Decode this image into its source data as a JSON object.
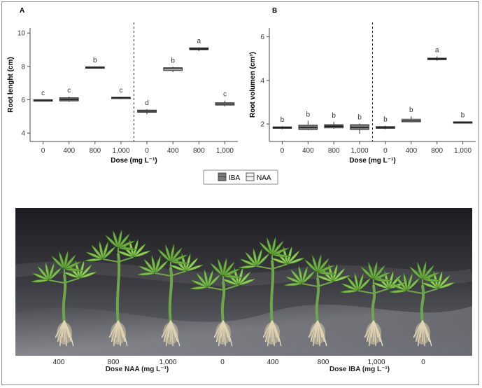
{
  "chart_data": [
    {
      "type": "box",
      "panel_label": "A",
      "ylabel": "Root lenght (cm)",
      "xlabel": "Dose (mg L⁻¹)",
      "ylim": [
        3.5,
        10.3
      ],
      "yticks": [
        4,
        6,
        8,
        10
      ],
      "categories": [
        "0",
        "400",
        "800",
        "1,000",
        "0",
        "400",
        "800",
        "1,000"
      ],
      "groups": [
        "IBA",
        "IBA",
        "IBA",
        "IBA",
        "NAA",
        "NAA",
        "NAA",
        "NAA"
      ],
      "boxes": [
        {
          "min": 5.93,
          "q1": 5.96,
          "median": 5.98,
          "q3": 6.0,
          "max": 6.02,
          "letter": "c"
        },
        {
          "min": 5.88,
          "q1": 5.93,
          "median": 6.03,
          "q3": 6.12,
          "max": 6.18,
          "letter": "c"
        },
        {
          "min": 7.88,
          "q1": 7.93,
          "median": 7.95,
          "q3": 7.97,
          "max": 8.0,
          "letter": "b"
        },
        {
          "min": 6.08,
          "q1": 6.11,
          "median": 6.13,
          "q3": 6.15,
          "max": 6.18,
          "letter": "c"
        },
        {
          "min": 5.12,
          "q1": 5.25,
          "median": 5.32,
          "q3": 5.38,
          "max": 5.43,
          "letter": "d"
        },
        {
          "min": 7.65,
          "q1": 7.75,
          "median": 7.85,
          "q3": 7.92,
          "max": 7.97,
          "letter": "b"
        },
        {
          "min": 8.92,
          "q1": 9.0,
          "median": 9.05,
          "q3": 9.12,
          "max": 9.15,
          "letter": "a"
        },
        {
          "min": 5.6,
          "q1": 5.68,
          "median": 5.75,
          "q3": 5.82,
          "max": 5.95,
          "letter": "c"
        }
      ]
    },
    {
      "type": "box",
      "panel_label": "B",
      "ylabel": "Root volumen (cm³)",
      "xlabel": "Dose (mg L⁻¹)",
      "ylim": [
        1.2,
        6.4
      ],
      "yticks": [
        2,
        4,
        6
      ],
      "categories": [
        "0",
        "400",
        "800",
        "1,000",
        "0",
        "400",
        "800",
        "1,000"
      ],
      "groups": [
        "IBA",
        "IBA",
        "IBA",
        "IBA",
        "NAA",
        "NAA",
        "NAA",
        "NAA"
      ],
      "boxes": [
        {
          "min": 1.76,
          "q1": 1.8,
          "median": 1.83,
          "q3": 1.87,
          "max": 1.9,
          "letter": "b"
        },
        {
          "min": 1.72,
          "q1": 1.75,
          "median": 1.85,
          "q3": 1.95,
          "max": 2.15,
          "letter": "b"
        },
        {
          "min": 1.78,
          "q1": 1.82,
          "median": 1.9,
          "q3": 1.97,
          "max": 2.1,
          "letter": "b"
        },
        {
          "min": 1.55,
          "q1": 1.75,
          "median": 1.85,
          "q3": 1.97,
          "max": 2.02,
          "letter": "b"
        },
        {
          "min": 1.76,
          "q1": 1.8,
          "median": 1.84,
          "q3": 1.88,
          "max": 1.92,
          "letter": "b"
        },
        {
          "min": 2.08,
          "q1": 2.1,
          "median": 2.15,
          "q3": 2.22,
          "max": 2.35,
          "letter": "b"
        },
        {
          "min": 4.9,
          "q1": 4.95,
          "median": 4.98,
          "q3": 5.02,
          "max": 5.1,
          "letter": "a"
        },
        {
          "min": 2.05,
          "q1": 2.07,
          "median": 2.08,
          "q3": 2.1,
          "max": 2.12,
          "letter": "b"
        }
      ]
    }
  ],
  "legend": {
    "entries": [
      {
        "name": "IBA",
        "color": "#7a7a7a"
      },
      {
        "name": "NAA",
        "color": "#f2f2f2"
      }
    ]
  },
  "colors": {
    "IBA": "#7a7a7a",
    "NAA": "#f2f2f2"
  },
  "photo": {
    "dose_labels": [
      "400",
      "800",
      "1,000",
      "0",
      "400",
      "800",
      "1,000",
      "0"
    ],
    "naa_axis_label": "Dose NAA (mg L⁻¹)",
    "iba_axis_label": "Dose IBA (mg L⁻¹)"
  }
}
